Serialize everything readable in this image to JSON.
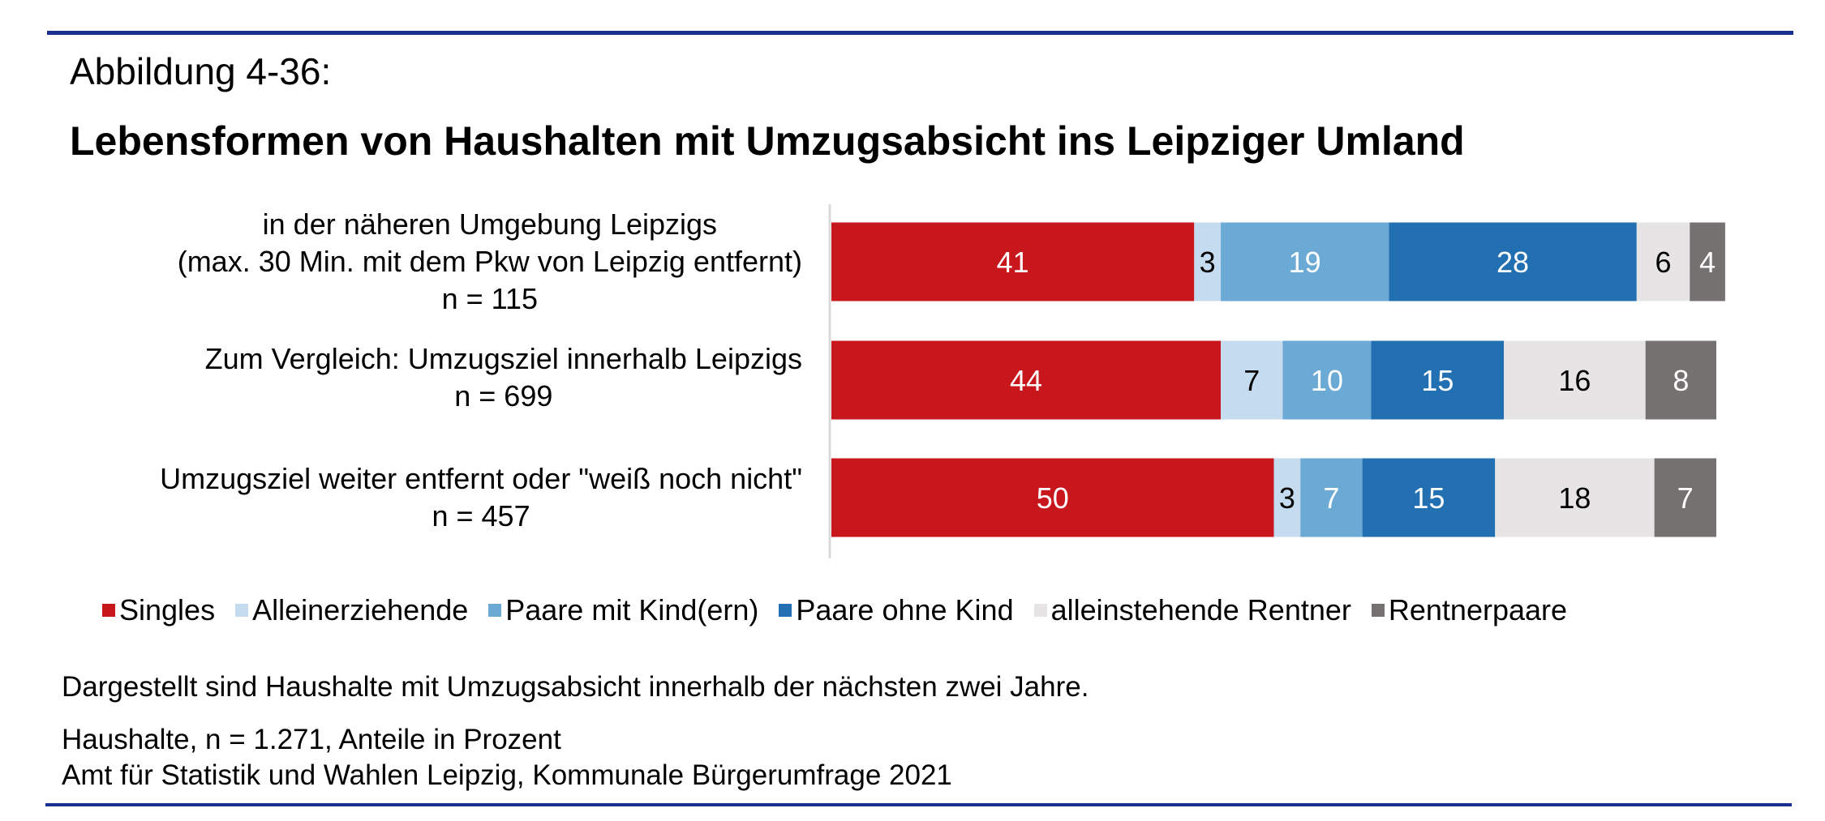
{
  "figure_label": "Abbildung 4-36:",
  "title": "Lebensformen von Haushalten mit Umzugsabsicht ins Leipziger Umland",
  "chart_data": {
    "type": "bar",
    "orientation": "horizontal",
    "stacked": true,
    "title": "Lebensformen von Haushalten mit Umzugsabsicht ins Leipziger Umland",
    "xlabel": "",
    "ylabel": "",
    "xlim": [
      0,
      100
    ],
    "grid": false,
    "legend_position": "bottom",
    "categories": [
      [
        "in der näheren Umgebung Leipzigs",
        "(max. 30 Min. mit dem Pkw von Leipzig entfernt)",
        "n = 115"
      ],
      [
        "Zum Vergleich: Umzugsziel innerhalb Leipzigs",
        "n = 699"
      ],
      [
        "Umzugsziel weiter entfernt oder \"weiß noch nicht\"",
        "n = 457"
      ]
    ],
    "series": [
      {
        "name": "Singles",
        "color": "#c8161d",
        "label_color": "#ffffff",
        "values": [
          41,
          44,
          50
        ]
      },
      {
        "name": "Alleinerziehende",
        "color": "#c5dbef",
        "label_color": "#000000",
        "values": [
          3,
          7,
          3
        ]
      },
      {
        "name": "Paare mit Kind(ern)",
        "color": "#6aaad4",
        "label_color": "#ffffff",
        "values": [
          19,
          10,
          7
        ]
      },
      {
        "name": "Paare ohne Kind",
        "color": "#2270b2",
        "label_color": "#ffffff",
        "values": [
          28,
          15,
          15
        ]
      },
      {
        "name": "alleinstehende Rentner",
        "color": "#e6e4e4",
        "label_color": "#000000",
        "values": [
          6,
          16,
          18
        ]
      },
      {
        "name": "Rentnerpaare",
        "color": "#767171",
        "label_color": "#ffffff",
        "values": [
          4,
          8,
          7
        ]
      }
    ]
  },
  "notes": [
    "Dargestellt sind Haushalte mit Umzugsabsicht innerhalb der nächsten zwei Jahre.",
    "Haushalte, n = 1.271, Anteile in Prozent",
    "Amt für Statistik und Wahlen Leipzig, Kommunale Bürgerumfrage 2021"
  ],
  "colors": {
    "rule": "#1a2f8f",
    "axis": "#d9d9d9"
  }
}
